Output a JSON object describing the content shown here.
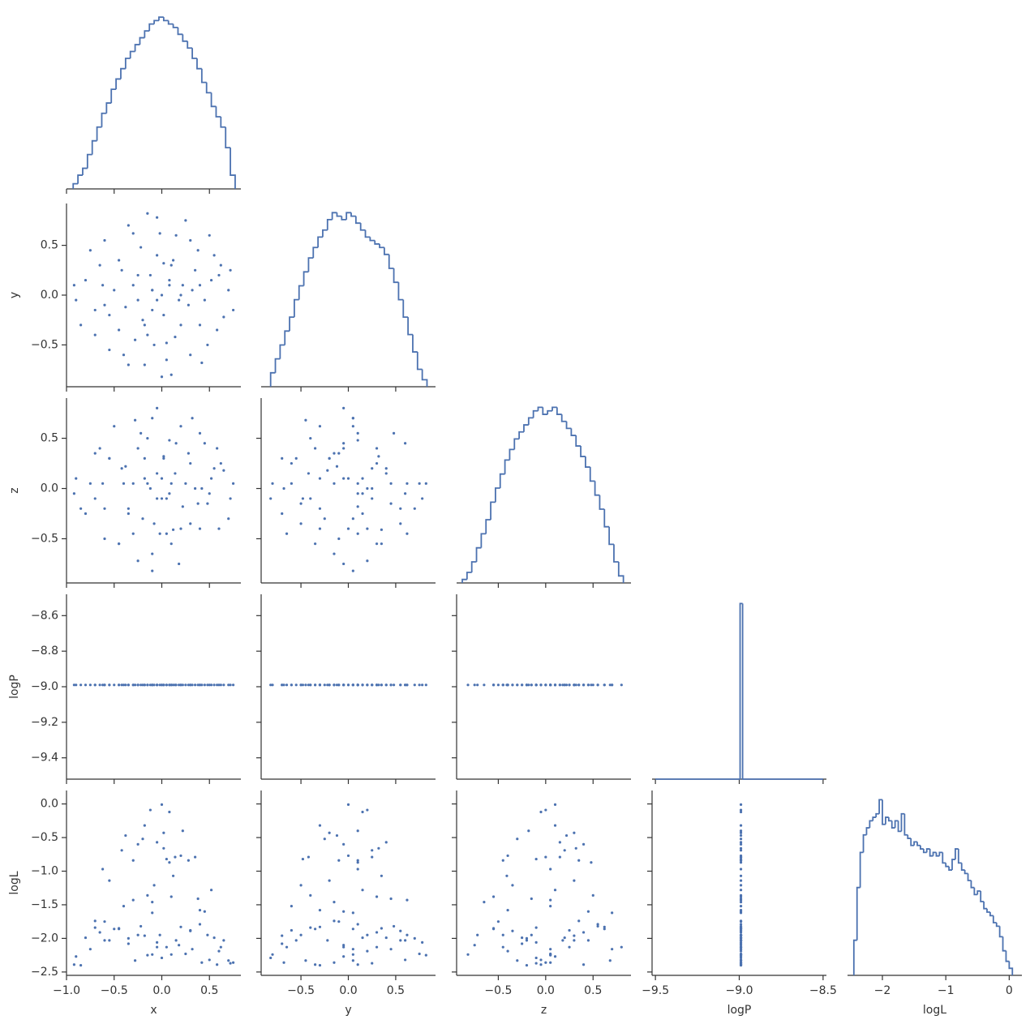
{
  "chart_data": {
    "type": "pairplot",
    "color": "#4c72b0",
    "axes": [
      {
        "label": "x",
        "lim": [
          -1.0,
          0.83
        ],
        "ticks": [
          {
            "value": -1.0,
            "label": "−1.0"
          },
          {
            "value": -0.5,
            "label": "−0.5"
          },
          {
            "value": 0,
            "label": "0.0"
          },
          {
            "value": 0.5,
            "label": "0.5"
          }
        ],
        "bins": [
          -0.93,
          -0.88,
          -0.83,
          -0.78,
          -0.73,
          -0.68,
          -0.63,
          -0.58,
          -0.53,
          -0.48,
          -0.43,
          -0.38,
          -0.33,
          -0.28,
          -0.23,
          -0.18,
          -0.13,
          -0.08,
          -0.03,
          0.02,
          0.07,
          0.12,
          0.17,
          0.22,
          0.27,
          0.32,
          0.37,
          0.42,
          0.47,
          0.52,
          0.57,
          0.62,
          0.67,
          0.72,
          0.77
        ],
        "counts": [
          3,
          8,
          12,
          20,
          28,
          36,
          44,
          50,
          58,
          64,
          70,
          76,
          80,
          84,
          88,
          92,
          96,
          98,
          100,
          98,
          96,
          94,
          90,
          86,
          82,
          76,
          70,
          62,
          56,
          48,
          42,
          36,
          24,
          8
        ],
        "samples": [
          0.12,
          -0.55,
          0.4,
          -0.3,
          0.05,
          -0.8,
          0.65,
          -0.1,
          -0.18,
          0.3,
          -0.45,
          0.0,
          0.55,
          -0.65,
          0.2,
          -0.25,
          0.7,
          -0.05,
          0.1,
          -0.9,
          0.35,
          -0.38,
          0.22,
          -0.2,
          0.48,
          -0.6,
          0.15,
          -0.4,
          0.6,
          -0.15,
          0.28,
          -0.7,
          -0.05,
          0.45,
          -0.3,
          0.05,
          -0.75,
          0.25,
          -0.5,
          0.75,
          -0.1,
          0.38,
          -0.85,
          0.1,
          -0.35,
          0.58,
          -0.22,
          0.02,
          -0.6,
          0.3,
          -0.12,
          0.5,
          -0.45,
          0.18,
          -0.28,
          0.62,
          -0.02,
          -0.7,
          0.4,
          -0.35,
          0.08,
          -0.55,
          0.32,
          -0.18,
          0.52,
          -0.42,
          0.14,
          -0.62,
          0.02,
          -0.25,
          0.2,
          -0.08,
          0.42,
          -0.92,
          0.72,
          -0.15,
          0.0,
          -0.1,
          -0.05,
          0.08
        ]
      },
      {
        "label": "y",
        "lim": [
          -0.92,
          0.92
        ],
        "ticks": [
          {
            "value": -0.5,
            "label": "−0.5"
          },
          {
            "value": 0,
            "label": "0.0"
          },
          {
            "value": 0.5,
            "label": "0.5"
          }
        ],
        "bins": [
          -0.82,
          -0.77,
          -0.72,
          -0.67,
          -0.62,
          -0.57,
          -0.52,
          -0.47,
          -0.42,
          -0.37,
          -0.32,
          -0.27,
          -0.22,
          -0.17,
          -0.12,
          -0.07,
          -0.02,
          0.03,
          0.08,
          0.13,
          0.18,
          0.23,
          0.28,
          0.33,
          0.38,
          0.43,
          0.48,
          0.53,
          0.58,
          0.63,
          0.68,
          0.73,
          0.78,
          0.83
        ],
        "counts": [
          8,
          16,
          24,
          32,
          40,
          50,
          58,
          66,
          74,
          80,
          86,
          90,
          96,
          100,
          98,
          96,
          100,
          98,
          94,
          90,
          86,
          84,
          82,
          80,
          76,
          68,
          60,
          50,
          40,
          30,
          20,
          10,
          4
        ],
        "samples": [
          0.35,
          -0.2,
          0.1,
          0.62,
          -0.48,
          0.15,
          -0.22,
          0.05,
          -0.7,
          0.55,
          -0.35,
          0.0,
          0.4,
          0.3,
          -0.3,
          0.2,
          0.05,
          0.78,
          -0.8,
          -0.05,
          0.25,
          -0.12,
          0.1,
          -0.25,
          -0.5,
          0.55,
          0.6,
          -0.6,
          0.2,
          -0.4,
          -0.1,
          -0.4,
          0.4,
          -0.05,
          0.1,
          -0.65,
          0.45,
          0.75,
          0.05,
          -0.15,
          -0.15,
          0.45,
          -0.3,
          0.3,
          -0.7,
          -0.35,
          0.48,
          -0.2,
          -0.1,
          -0.6,
          0.2,
          0.6,
          0.35,
          -0.05,
          -0.45,
          0.3,
          0.62,
          -0.15,
          -0.3,
          0.7,
          0.1,
          -0.55,
          0.05,
          -0.3,
          0.15,
          0.25,
          -0.42,
          0.1,
          0.32,
          -0.05,
          0.0,
          -0.5,
          -0.68,
          0.1,
          0.25,
          0.82,
          -0.82,
          0.05,
          -0.05,
          0.15
        ]
      },
      {
        "label": "z",
        "lim": [
          -0.94,
          0.9
        ],
        "ticks": [
          {
            "value": -0.5,
            "label": "−0.5"
          },
          {
            "value": 0,
            "label": "0.0"
          },
          {
            "value": 0.5,
            "label": "0.5"
          }
        ],
        "bins": [
          -0.88,
          -0.83,
          -0.78,
          -0.73,
          -0.68,
          -0.63,
          -0.58,
          -0.53,
          -0.48,
          -0.43,
          -0.38,
          -0.33,
          -0.28,
          -0.23,
          -0.18,
          -0.13,
          -0.08,
          -0.03,
          0.02,
          0.07,
          0.12,
          0.17,
          0.22,
          0.27,
          0.32,
          0.37,
          0.42,
          0.47,
          0.52,
          0.57,
          0.62,
          0.67,
          0.72,
          0.77,
          0.82
        ],
        "counts": [
          2,
          6,
          12,
          20,
          28,
          36,
          46,
          54,
          62,
          70,
          76,
          82,
          86,
          90,
          94,
          98,
          100,
          96,
          98,
          100,
          96,
          92,
          88,
          84,
          78,
          72,
          66,
          58,
          50,
          42,
          32,
          22,
          12,
          4
        ],
        "samples": [
          -0.41,
          0.3,
          0.55,
          0.05,
          -0.1,
          -0.25,
          0.18,
          0.7,
          0.3,
          -0.35,
          -0.55,
          0.1,
          0.2,
          0.4,
          0.62,
          -0.72,
          -0.3,
          -0.1,
          0.05,
          0.1,
          0.0,
          0.22,
          -0.18,
          -0.3,
          -0.15,
          -0.2,
          0.45,
          0.05,
          -0.4,
          0.5,
          0.35,
          -0.1,
          0.15,
          0.45,
          -0.45,
          -0.45,
          0.05,
          0.05,
          0.62,
          0.05,
          -0.65,
          -0.15,
          -0.2,
          -0.55,
          -0.25,
          0.4,
          0.55,
          0.3,
          -0.5,
          0.25,
          0.0,
          -0.05,
          -0.55,
          -0.75,
          0.68,
          0.25,
          -0.45,
          0.35,
          -0.4,
          -0.2,
          0.48,
          0.3,
          0.7,
          0.1,
          0.1,
          0.2,
          0.15,
          0.05,
          0.32,
          0.4,
          -0.4,
          -0.35,
          0.0,
          -0.05,
          -0.1,
          0.05,
          -0.1,
          -0.82,
          0.8,
          -0.05
        ]
      },
      {
        "label": "logP",
        "lim": [
          -9.52,
          -8.48
        ],
        "ticks": [
          {
            "value": -9.5,
            "label": "−9.5"
          },
          {
            "value": -9.0,
            "label": "−9.0"
          },
          {
            "value": -8.5,
            "label": "−8.5"
          }
        ],
        "yticks": [
          {
            "value": -9.4,
            "label": "−9.4"
          },
          {
            "value": -9.2,
            "label": "−9.2"
          },
          {
            "value": -9.0,
            "label": "−9.0"
          },
          {
            "value": -8.8,
            "label": "−8.8"
          },
          {
            "value": -8.6,
            "label": "−8.6"
          }
        ],
        "bins": [
          -9.5,
          -8.995,
          -8.98,
          -8.5
        ],
        "counts": [
          0,
          100,
          0
        ],
        "samples": [
          -8.99,
          -8.99,
          -8.99,
          -8.99,
          -8.99,
          -8.99,
          -8.99,
          -8.99,
          -8.99,
          -8.99,
          -8.99,
          -8.99,
          -8.99,
          -8.99,
          -8.99,
          -8.99,
          -8.99,
          -8.99,
          -8.99,
          -8.99,
          -8.99,
          -8.99,
          -8.99,
          -8.99,
          -8.99,
          -8.99,
          -8.99,
          -8.99,
          -8.99,
          -8.99,
          -8.99,
          -8.99,
          -8.99,
          -8.99,
          -8.99,
          -8.99,
          -8.99,
          -8.99,
          -8.99,
          -8.99,
          -8.99,
          -8.99,
          -8.99,
          -8.99,
          -8.99,
          -8.99,
          -8.99,
          -8.99,
          -8.99,
          -8.99,
          -8.99,
          -8.99,
          -8.99,
          -8.99,
          -8.99,
          -8.99,
          -8.99,
          -8.99,
          -8.99,
          -8.99,
          -8.99,
          -8.99,
          -8.99,
          -8.99,
          -8.99,
          -8.99,
          -8.99,
          -8.99,
          -8.99,
          -8.99,
          -8.99,
          -8.99,
          -8.99,
          -8.99,
          -8.99,
          -8.99,
          -8.99,
          -8.99,
          -8.99,
          -8.99
        ]
      },
      {
        "label": "logL",
        "lim": [
          -2.55,
          0.2
        ],
        "ticks": [
          {
            "value": -2,
            "label": "−2"
          },
          {
            "value": -1,
            "label": "−1"
          },
          0
        ],
        "yticks": [
          {
            "value": -2.5,
            "label": "−2.5"
          },
          {
            "value": -2.0,
            "label": "−2.0"
          },
          {
            "value": -1.5,
            "label": "−1.5"
          },
          {
            "value": -1.0,
            "label": "−1.0"
          },
          {
            "value": -0.5,
            "label": "−0.5"
          },
          {
            "value": 0,
            "label": "0.0"
          }
        ],
        "bins": [
          -2.45,
          -2.4,
          -2.35,
          -2.3,
          -2.25,
          -2.2,
          -2.15,
          -2.1,
          -2.05,
          -2,
          -1.95,
          -1.9,
          -1.85,
          -1.8,
          -1.75,
          -1.7,
          -1.65,
          -1.6,
          -1.55,
          -1.5,
          -1.45,
          -1.4,
          -1.35,
          -1.3,
          -1.25,
          -1.2,
          -1.15,
          -1.1,
          -1.05,
          -1,
          -0.95,
          -0.9,
          -0.85,
          -0.8,
          -0.75,
          -0.7,
          -0.65,
          -0.6,
          -0.55,
          -0.5,
          -0.45,
          -0.4,
          -0.35,
          -0.3,
          -0.25,
          -0.2,
          -0.15,
          -0.1,
          -0.05,
          0,
          0.05
        ],
        "counts": [
          20,
          50,
          70,
          80,
          84,
          88,
          90,
          92,
          100,
          86,
          90,
          88,
          84,
          88,
          82,
          92,
          80,
          78,
          74,
          76,
          74,
          72,
          70,
          72,
          68,
          70,
          68,
          70,
          64,
          62,
          60,
          66,
          72,
          64,
          60,
          58,
          54,
          50,
          46,
          48,
          42,
          38,
          36,
          34,
          30,
          28,
          22,
          14,
          8,
          4
        ],
        "samples": [
          -1.07,
          -1.14,
          -1.79,
          -1.43,
          -0.82,
          -1.99,
          -2.03,
          -1.62,
          -1.96,
          -1.89,
          -1.86,
          -0.01,
          -1.99,
          -1.91,
          -1.83,
          -1.95,
          -2.33,
          -2.06,
          -2.24,
          -2.27,
          -0.79,
          -0.47,
          -0.4,
          -0.52,
          -1.95,
          -2.03,
          -2.03,
          -1.52,
          -2.19,
          -1.36,
          -0.84,
          -1.84,
          -0.57,
          -1.6,
          -0.84,
          -2.13,
          -2.16,
          -2.23,
          -1.86,
          -2.36,
          -1.46,
          -1.41,
          -2.4,
          -1.38,
          -2.08,
          -2.39,
          -1.82,
          -0.43,
          -1.75,
          -1.88,
          -0.09,
          -2.32,
          -1.85,
          -2.1,
          -2.33,
          -2.13,
          -1.95,
          -1.74,
          -1.58,
          -2.0,
          -0.87,
          -2.03,
          -2.16,
          -0.32,
          -1.28,
          -0.69,
          -0.79,
          -0.97,
          -0.66,
          -0.6,
          -0.77,
          -1.21,
          -2.36,
          -2.39,
          -2.37,
          -2.25,
          -2.29,
          -2.24,
          -2.13,
          -0.12
        ]
      }
    ]
  }
}
